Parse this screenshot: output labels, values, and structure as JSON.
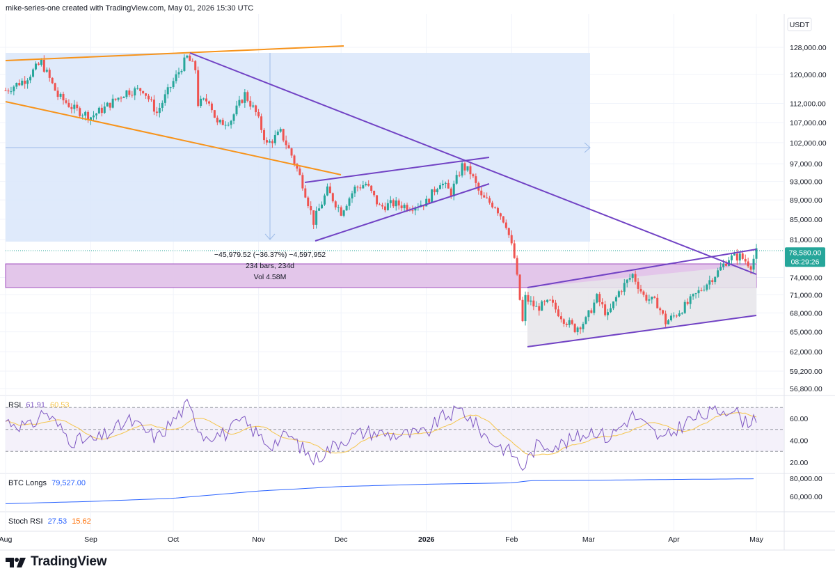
{
  "header": "mike-series-one created with TradingView.com, May 01, 2026 15:30 UTC",
  "footer": {
    "brand": "TradingView",
    "logo_icon": "tradingview-logo-icon"
  },
  "colors": {
    "up": "#26a69a",
    "down": "#ef5350",
    "measure_zone": "#dce8fb",
    "support_zone": "#e3c6ea",
    "channel_zone": "#e6e5ea",
    "orange_lines": "#f7931a",
    "purple_lines": "#7142c4",
    "rsi_line": "#7e57c2",
    "rsi_ma": "#f5c54c",
    "btc_longs": "#2962ff",
    "stoch_k": "#2962ff",
    "stoch_d": "#ff6d00"
  },
  "chart_data": [
    {
      "type": "candlestick",
      "symbol": "BTC/USDT",
      "currency_label": "USDT",
      "scale": "logarithmic",
      "y_ticks": [
        "128,000.00",
        "120,000.00",
        "112,000.00",
        "107,000.00",
        "102,000.00",
        "97,000.00",
        "93,000.00",
        "89,000.00",
        "85,000.00",
        "81,000.00",
        "74,000.00",
        "71,000.00",
        "68,000.00",
        "65,000.00",
        "62,000.00",
        "59,200.00",
        "56,800.00"
      ],
      "x_ticks": [
        "Aug",
        "Sep",
        "Oct",
        "Nov",
        "Dec",
        "2026",
        "Feb",
        "Mar",
        "Apr",
        "May"
      ],
      "last_price": "78,580.00",
      "countdown": "08:29:26",
      "measure_label": {
        "line1": "−45,979.52 (−36.37%) −4,597,952",
        "line2": "234 bars, 234d",
        "line3": "Vol 4.58M"
      },
      "price_path": [
        [
          "2025-08-01",
          115500
        ],
        [
          "2025-08-08",
          118500
        ],
        [
          "2025-08-14",
          123500
        ],
        [
          "2025-08-20",
          114000
        ],
        [
          "2025-08-26",
          110500
        ],
        [
          "2025-09-01",
          108500
        ],
        [
          "2025-09-06",
          110800
        ],
        [
          "2025-09-14",
          115200
        ],
        [
          "2025-09-20",
          115800
        ],
        [
          "2025-09-25",
          109500
        ],
        [
          "2025-10-01",
          118000
        ],
        [
          "2025-10-06",
          125000
        ],
        [
          "2025-10-09",
          121500
        ],
        [
          "2025-10-10",
          112000
        ],
        [
          "2025-10-14",
          113000
        ],
        [
          "2025-10-17",
          106500
        ],
        [
          "2025-10-22",
          107800
        ],
        [
          "2025-10-27",
          114500
        ],
        [
          "2025-10-31",
          109500
        ],
        [
          "2025-11-04",
          101500
        ],
        [
          "2025-11-09",
          104500
        ],
        [
          "2025-11-13",
          99000
        ],
        [
          "2025-11-17",
          92500
        ],
        [
          "2025-11-21",
          84500
        ],
        [
          "2025-11-26",
          91000
        ],
        [
          "2025-12-01",
          86500
        ],
        [
          "2025-12-06",
          91500
        ],
        [
          "2025-12-10",
          92500
        ],
        [
          "2025-12-15",
          87500
        ],
        [
          "2025-12-20",
          88200
        ],
        [
          "2025-12-26",
          87600
        ],
        [
          "2026-01-01",
          88500
        ],
        [
          "2026-01-06",
          93000
        ],
        [
          "2026-01-10",
          90500
        ],
        [
          "2026-01-14",
          96500
        ],
        [
          "2026-01-17",
          95000
        ],
        [
          "2026-01-21",
          89500
        ],
        [
          "2026-01-26",
          87800
        ],
        [
          "2026-01-30",
          84000
        ],
        [
          "2026-02-02",
          77500
        ],
        [
          "2026-02-05",
          66500
        ],
        [
          "2026-02-06",
          70500
        ],
        [
          "2026-02-10",
          68800
        ],
        [
          "2026-02-15",
          69700
        ],
        [
          "2026-02-20",
          67000
        ],
        [
          "2026-02-24",
          65500
        ],
        [
          "2026-02-28",
          66800
        ],
        [
          "2026-03-04",
          70500
        ],
        [
          "2026-03-08",
          67500
        ],
        [
          "2026-03-12",
          71500
        ],
        [
          "2026-03-17",
          74500
        ],
        [
          "2026-03-21",
          70800
        ],
        [
          "2026-03-26",
          69500
        ],
        [
          "2026-03-29",
          66500
        ],
        [
          "2026-04-01",
          67500
        ],
        [
          "2026-04-06",
          69500
        ],
        [
          "2026-04-12",
          72500
        ],
        [
          "2026-04-17",
          75000
        ],
        [
          "2026-04-21",
          77500
        ],
        [
          "2026-04-25",
          77800
        ],
        [
          "2026-04-29",
          76200
        ],
        [
          "2026-05-01",
          78580
        ]
      ],
      "extremes": {
        "high": 126000,
        "low": 60000
      }
    },
    {
      "type": "line",
      "name": "RSI",
      "values_label": [
        "61.91",
        "60.53"
      ],
      "y_ticks": [
        "60.00",
        "40.00",
        "20.00"
      ],
      "bands": [
        30,
        50,
        70
      ],
      "rsi_path": [
        [
          "2025-08-01",
          58
        ],
        [
          "2025-08-10",
          52
        ],
        [
          "2025-08-15",
          67
        ],
        [
          "2025-08-25",
          40
        ],
        [
          "2025-09-03",
          40
        ],
        [
          "2025-09-15",
          58
        ],
        [
          "2025-09-25",
          42
        ],
        [
          "2025-10-06",
          72
        ],
        [
          "2025-10-12",
          45
        ],
        [
          "2025-10-20",
          46
        ],
        [
          "2025-10-26",
          58
        ],
        [
          "2025-11-05",
          36
        ],
        [
          "2025-11-12",
          45
        ],
        [
          "2025-11-21",
          22
        ],
        [
          "2025-12-01",
          40
        ],
        [
          "2025-12-10",
          48
        ],
        [
          "2025-12-20",
          45
        ],
        [
          "2026-01-01",
          46
        ],
        [
          "2026-01-06",
          60
        ],
        [
          "2026-01-14",
          68
        ],
        [
          "2026-01-24",
          40
        ],
        [
          "2026-02-01",
          29
        ],
        [
          "2026-02-05",
          15
        ],
        [
          "2026-02-10",
          35
        ],
        [
          "2026-02-20",
          37
        ],
        [
          "2026-03-03",
          50
        ],
        [
          "2026-03-08",
          42
        ],
        [
          "2026-03-17",
          63
        ],
        [
          "2026-03-28",
          40
        ],
        [
          "2026-04-06",
          58
        ],
        [
          "2026-04-16",
          66
        ],
        [
          "2026-04-22",
          70
        ],
        [
          "2026-04-27",
          56
        ],
        [
          "2026-05-01",
          62
        ]
      ]
    },
    {
      "type": "line",
      "name": "BTC Longs",
      "value_label": "79,527.00",
      "y_ticks": [
        "80,000.00",
        "60,000.00"
      ],
      "longs_path": [
        [
          "2025-08-01",
          52000
        ],
        [
          "2025-09-01",
          54500
        ],
        [
          "2025-10-01",
          58000
        ],
        [
          "2025-11-01",
          66000
        ],
        [
          "2025-12-01",
          71000
        ],
        [
          "2026-01-01",
          73500
        ],
        [
          "2026-02-01",
          75000
        ],
        [
          "2026-02-08",
          77500
        ],
        [
          "2026-03-01",
          77800
        ],
        [
          "2026-04-01",
          78800
        ],
        [
          "2026-05-01",
          79527
        ]
      ]
    },
    {
      "type": "line",
      "name": "Stoch RSI",
      "values_label": [
        "27.53",
        "15.62"
      ]
    }
  ]
}
